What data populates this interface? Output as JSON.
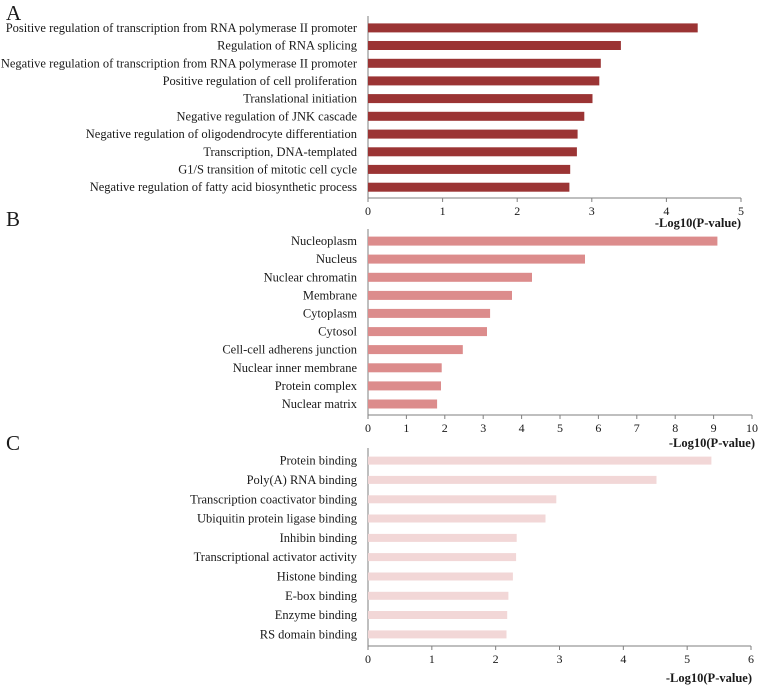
{
  "chart_data": [
    {
      "type": "bar",
      "orientation": "horizontal",
      "panel": "A",
      "color": "#9b3434",
      "categories": [
        "Positive regulation of transcription from RNA polymerase II promoter",
        "Regulation of RNA splicing",
        "Negative regulation of transcription from RNA polymerase II promoter",
        "Positive regulation of cell proliferation",
        "Translational initiation",
        "Negative regulation of JNK cascade",
        "Negative regulation of oligodendrocyte differentiation",
        "Transcription, DNA-templated",
        "G1/S transition of mitotic cell cycle",
        "Negative regulation of fatty acid biosynthetic process"
      ],
      "values": [
        4.42,
        3.39,
        3.12,
        3.1,
        3.01,
        2.9,
        2.81,
        2.8,
        2.71,
        2.7
      ],
      "xlabel": "-Log10(P-value)",
      "xlim": [
        0,
        5
      ],
      "xticks": [
        "0",
        "1",
        "2",
        "3",
        "4",
        "5"
      ]
    },
    {
      "type": "bar",
      "orientation": "horizontal",
      "panel": "B",
      "color": "#dc8c8c",
      "categories": [
        "Nucleoplasm",
        "Nucleus",
        "Nuclear chromatin",
        "Membrane",
        "Cytoplasm",
        "Cytosol",
        "Cell-cell adherens junction",
        "Nuclear inner membrane",
        "Protein complex",
        "Nuclear matrix"
      ],
      "values": [
        9.1,
        5.65,
        4.27,
        3.75,
        3.18,
        3.1,
        2.47,
        1.92,
        1.9,
        1.8
      ],
      "xlabel": "-Log10(P-value)",
      "xlim": [
        0,
        10
      ],
      "xticks": [
        "0",
        "1",
        "2",
        "3",
        "4",
        "5",
        "6",
        "7",
        "8",
        "9",
        "10"
      ]
    },
    {
      "type": "bar",
      "orientation": "horizontal",
      "panel": "C",
      "color": "#f2d7d7",
      "categories": [
        "Protein binding",
        "Poly(A) RNA binding",
        "Transcription coactivator binding",
        "Ubiquitin protein ligase binding",
        "Inhibin binding",
        "Transcriptional activator activity",
        "Histone binding",
        "E-box binding",
        "Enzyme binding",
        "RS domain binding"
      ],
      "values": [
        5.38,
        4.52,
        2.95,
        2.78,
        2.33,
        2.32,
        2.27,
        2.2,
        2.18,
        2.17
      ],
      "xlabel": "-Log10(P-value)",
      "xlim": [
        0,
        6
      ],
      "xticks": [
        "0",
        "1",
        "2",
        "3",
        "4",
        "5",
        "6"
      ]
    }
  ]
}
